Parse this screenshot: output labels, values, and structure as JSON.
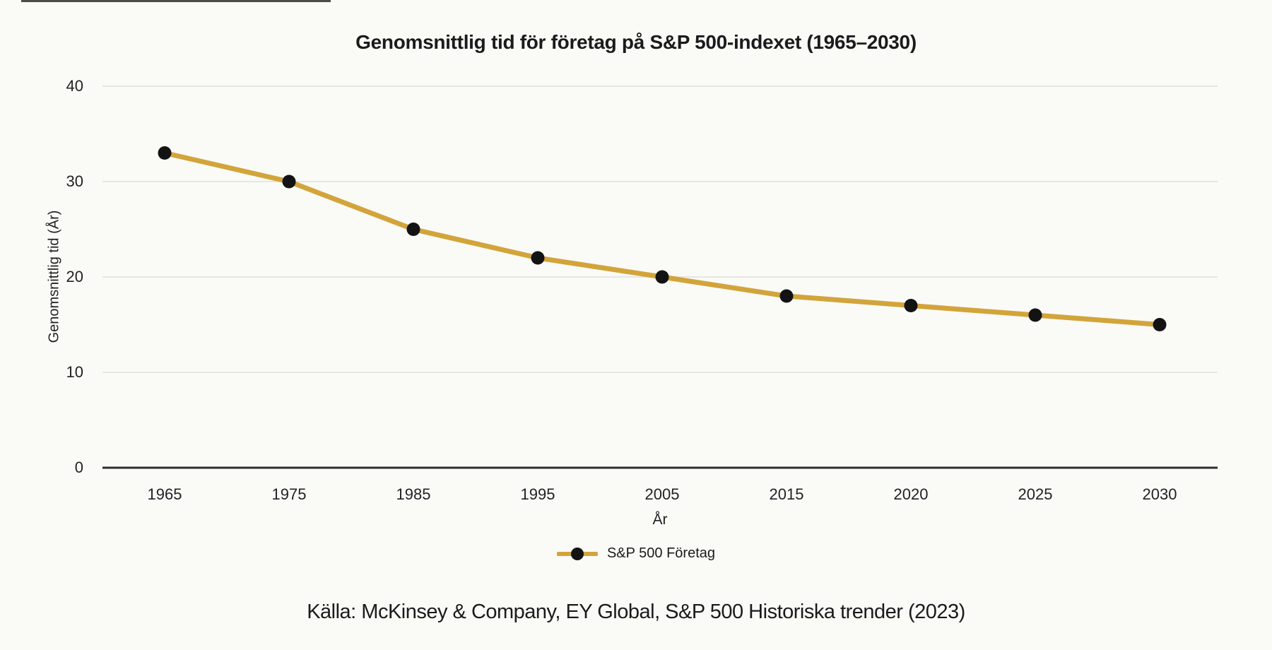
{
  "page": {
    "background": "#FAFAF7"
  },
  "chart_data": {
    "type": "line",
    "title": "Genomsnittlig tid för företag på S&P 500-indexet (1965–2030)",
    "xlabel": "År",
    "ylabel": "Genomsnittlig tid (År)",
    "categories": [
      "1965",
      "1975",
      "1985",
      "1995",
      "2005",
      "2015",
      "2020",
      "2025",
      "2030"
    ],
    "series": [
      {
        "name": "S&P 500 Företag",
        "values": [
          33,
          30,
          25,
          22,
          20,
          18,
          17,
          16,
          15
        ]
      }
    ],
    "yticks": [
      0,
      10,
      20,
      30,
      40
    ],
    "ylim": [
      0,
      40
    ],
    "grid": true,
    "legend_position": "bottom",
    "colors": {
      "line": "#D2A43A",
      "marker": "#131313",
      "grid": "#E6E6E2",
      "axis": "#2e2e2e",
      "tick_text": "#222222"
    }
  },
  "footer": {
    "source": "Källa: McKinsey & Company, EY Global, S&P 500 Historiska trender (2023)"
  }
}
